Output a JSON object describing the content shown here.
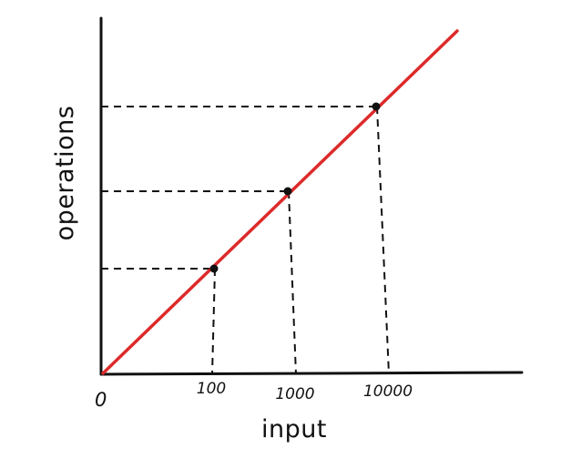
{
  "chart_data": {
    "type": "line",
    "title": "",
    "xlabel": "input",
    "ylabel": "operations",
    "origin_label": "0",
    "x_scale": "log",
    "ticks": [
      "100",
      "1000",
      "10000"
    ],
    "points": [
      {
        "x": 100,
        "y": 100
      },
      {
        "x": 1000,
        "y": 1000
      },
      {
        "x": 10000,
        "y": 10000
      }
    ],
    "grid": false,
    "legend": "none",
    "series_color": "#dd2a2a"
  }
}
